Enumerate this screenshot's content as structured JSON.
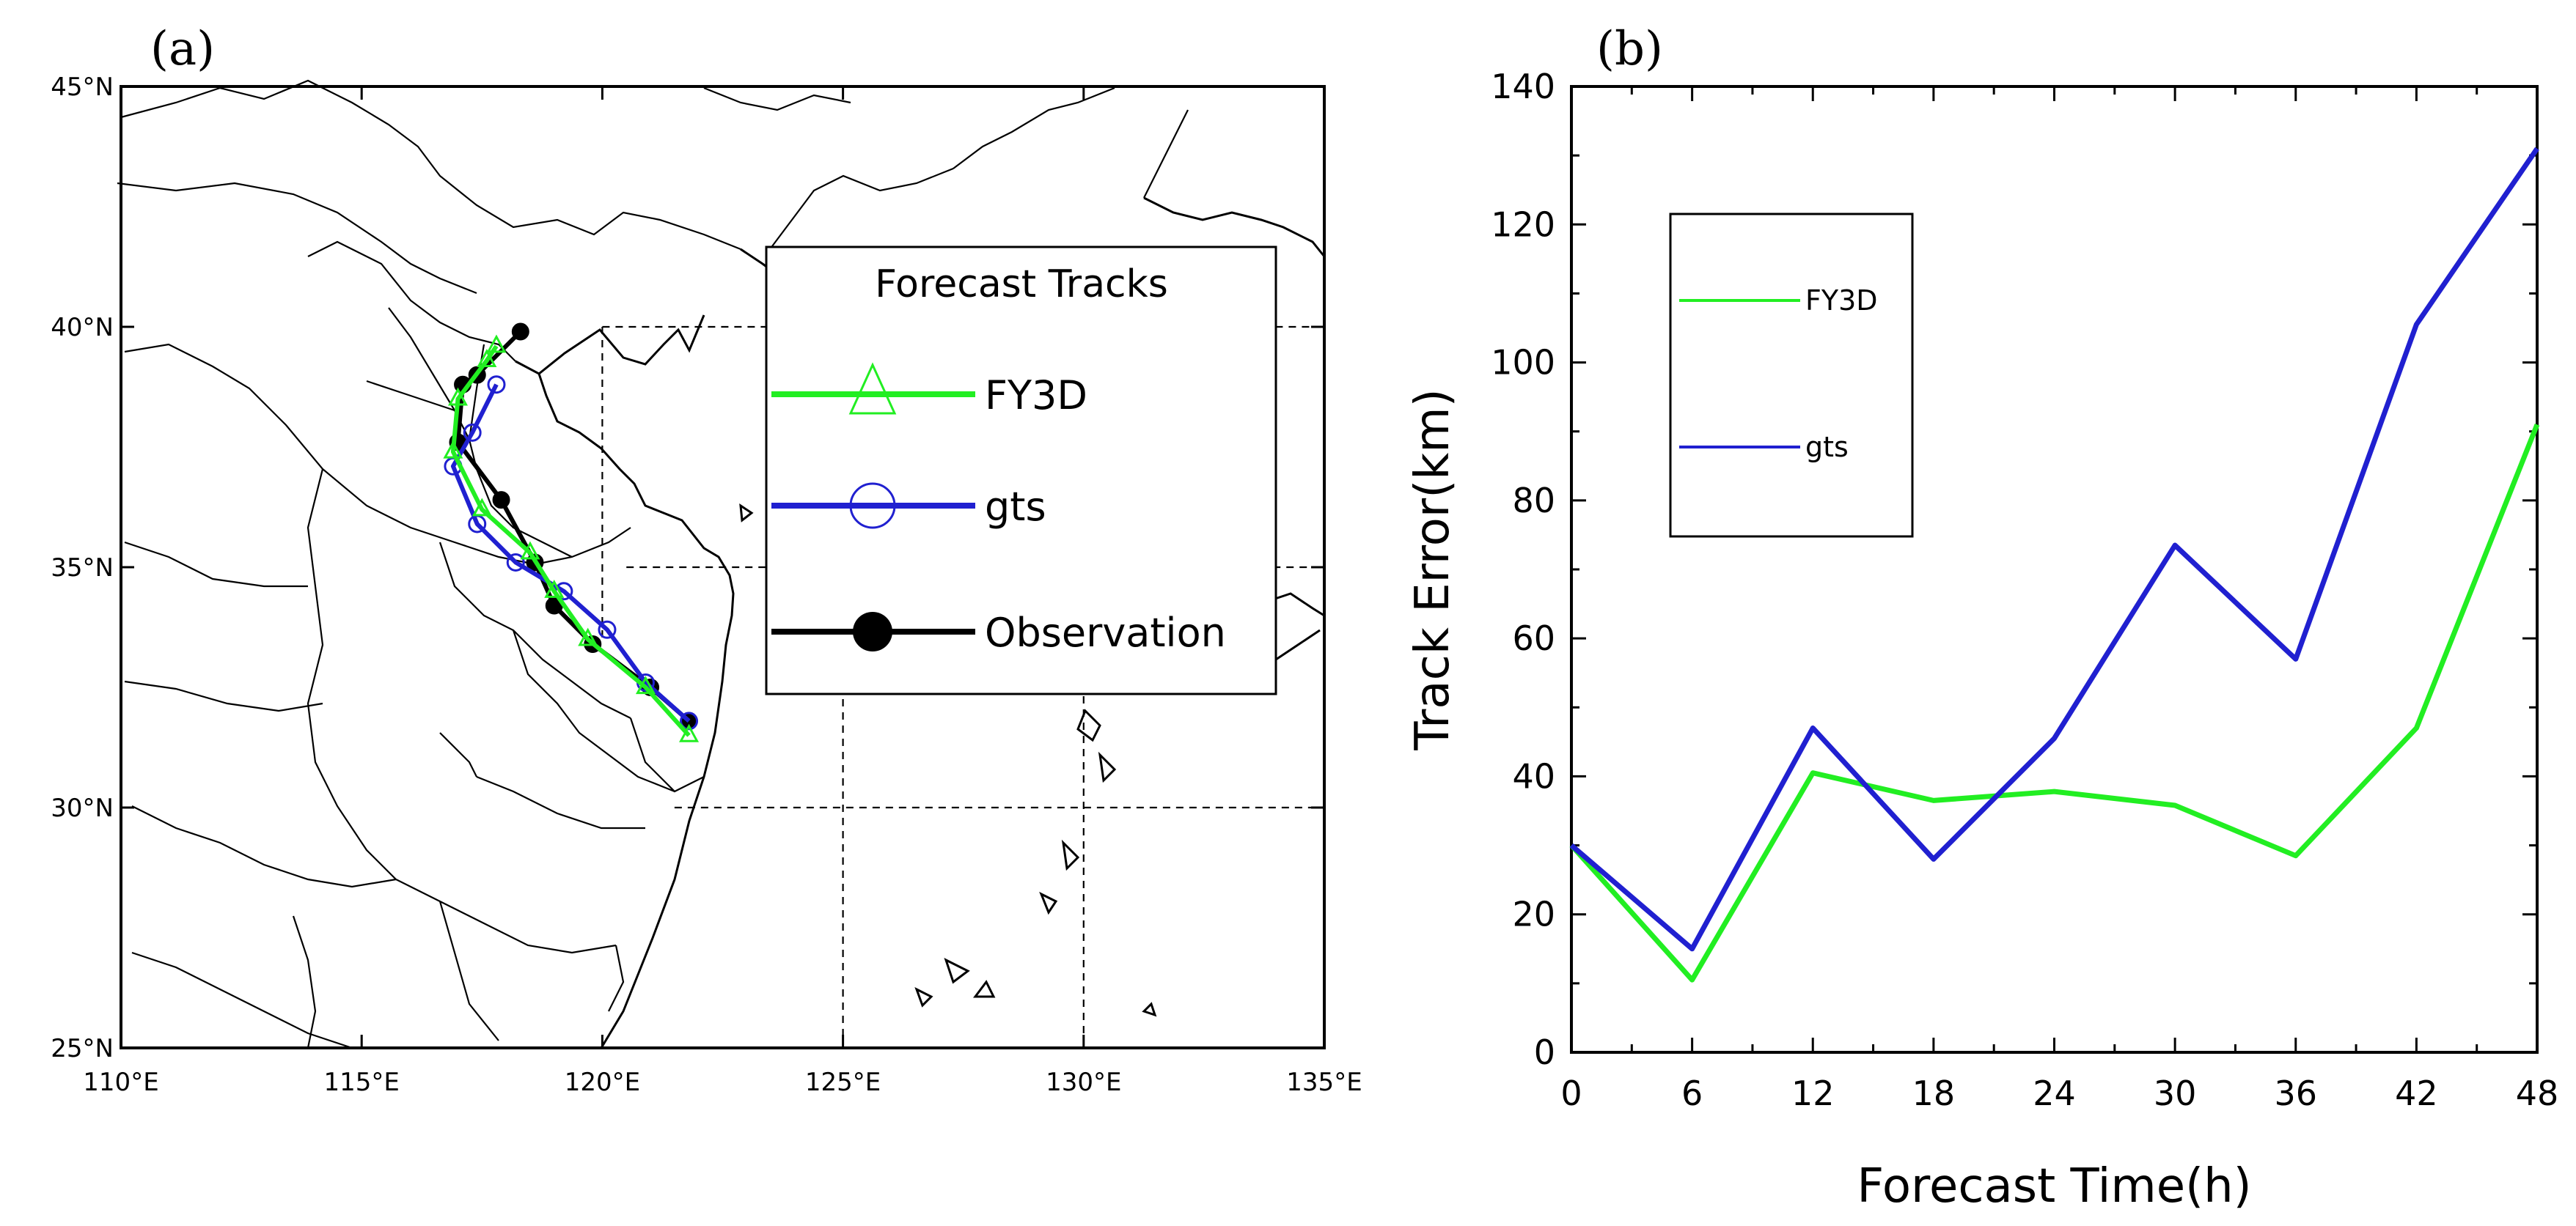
{
  "chart_data": [
    {
      "panel_label": "(a)",
      "type": "line",
      "subtype": "map-tracks",
      "x_axis": {
        "min": 110,
        "max": 135,
        "ticks": [
          110,
          115,
          120,
          125,
          130,
          135
        ],
        "tick_labels": [
          "110°E",
          "115°E",
          "120°E",
          "125°E",
          "130°E",
          "135°E"
        ]
      },
      "y_axis": {
        "min": 25,
        "max": 45,
        "ticks": [
          25,
          30,
          35,
          40,
          45
        ],
        "tick_labels": [
          "25°N",
          "30°N",
          "35°N",
          "40°N",
          "45°N"
        ]
      },
      "grid": "dashed at 120°E, 125°E, 130°E and 30°N, 35°N, 40°N over ocean",
      "legend": {
        "title": "Forecast Tracks",
        "position": "upper-right",
        "entries": [
          {
            "label": "FY3D",
            "color": "#22ee22",
            "marker": "triangle"
          },
          {
            "label": "gts",
            "color": "#2020d0",
            "marker": "circle"
          },
          {
            "label": "Observation",
            "color": "#000000",
            "marker": "filled-circle"
          }
        ]
      },
      "series": [
        {
          "name": "FY3D",
          "color": "#22ee22",
          "marker": "triangle",
          "lon": [
            121.8,
            120.9,
            119.7,
            119.0,
            118.5,
            117.5,
            116.9,
            117.0,
            117.6,
            117.8
          ],
          "lat": [
            31.5,
            32.5,
            33.5,
            34.5,
            35.3,
            36.2,
            37.4,
            38.5,
            39.3,
            39.6
          ]
        },
        {
          "name": "gts",
          "color": "#2020d0",
          "marker": "circle",
          "lon": [
            121.8,
            120.9,
            120.1,
            119.2,
            118.2,
            117.4,
            116.9,
            117.3,
            117.8
          ],
          "lat": [
            31.8,
            32.6,
            33.7,
            34.5,
            35.1,
            35.9,
            37.1,
            37.8,
            38.8
          ]
        },
        {
          "name": "Observation",
          "color": "#000000",
          "marker": "filled-circle",
          "lon": [
            121.8,
            121.0,
            119.8,
            119.0,
            118.6,
            117.9,
            117.0,
            117.1,
            117.4,
            118.3
          ],
          "lat": [
            31.8,
            32.5,
            33.4,
            34.2,
            35.1,
            36.4,
            37.6,
            38.8,
            39.0,
            39.9
          ]
        }
      ]
    },
    {
      "panel_label": "(b)",
      "type": "line",
      "xlabel": "Forecast Time(h)",
      "ylabel": "Track Error(km)",
      "x": [
        0,
        6,
        12,
        18,
        24,
        30,
        36,
        42,
        48
      ],
      "xlim": [
        0,
        48
      ],
      "ylim": [
        0,
        140
      ],
      "x_ticks": [
        0,
        6,
        12,
        18,
        24,
        30,
        36,
        42,
        48
      ],
      "y_ticks": [
        0,
        20,
        40,
        60,
        80,
        100,
        120,
        140
      ],
      "legend": {
        "position": "upper-left",
        "entries": [
          {
            "label": "FY3D",
            "color": "#22ee22"
          },
          {
            "label": "gts",
            "color": "#2020d0"
          }
        ]
      },
      "series": [
        {
          "name": "FY3D",
          "color": "#22ee22",
          "values": [
            30,
            10.5,
            40.5,
            36.5,
            37.8,
            35.8,
            28.5,
            47,
            91
          ]
        },
        {
          "name": "gts",
          "color": "#2020d0",
          "values": [
            30,
            15,
            47,
            28,
            45.5,
            73.5,
            57,
            105.5,
            131
          ]
        }
      ]
    }
  ]
}
